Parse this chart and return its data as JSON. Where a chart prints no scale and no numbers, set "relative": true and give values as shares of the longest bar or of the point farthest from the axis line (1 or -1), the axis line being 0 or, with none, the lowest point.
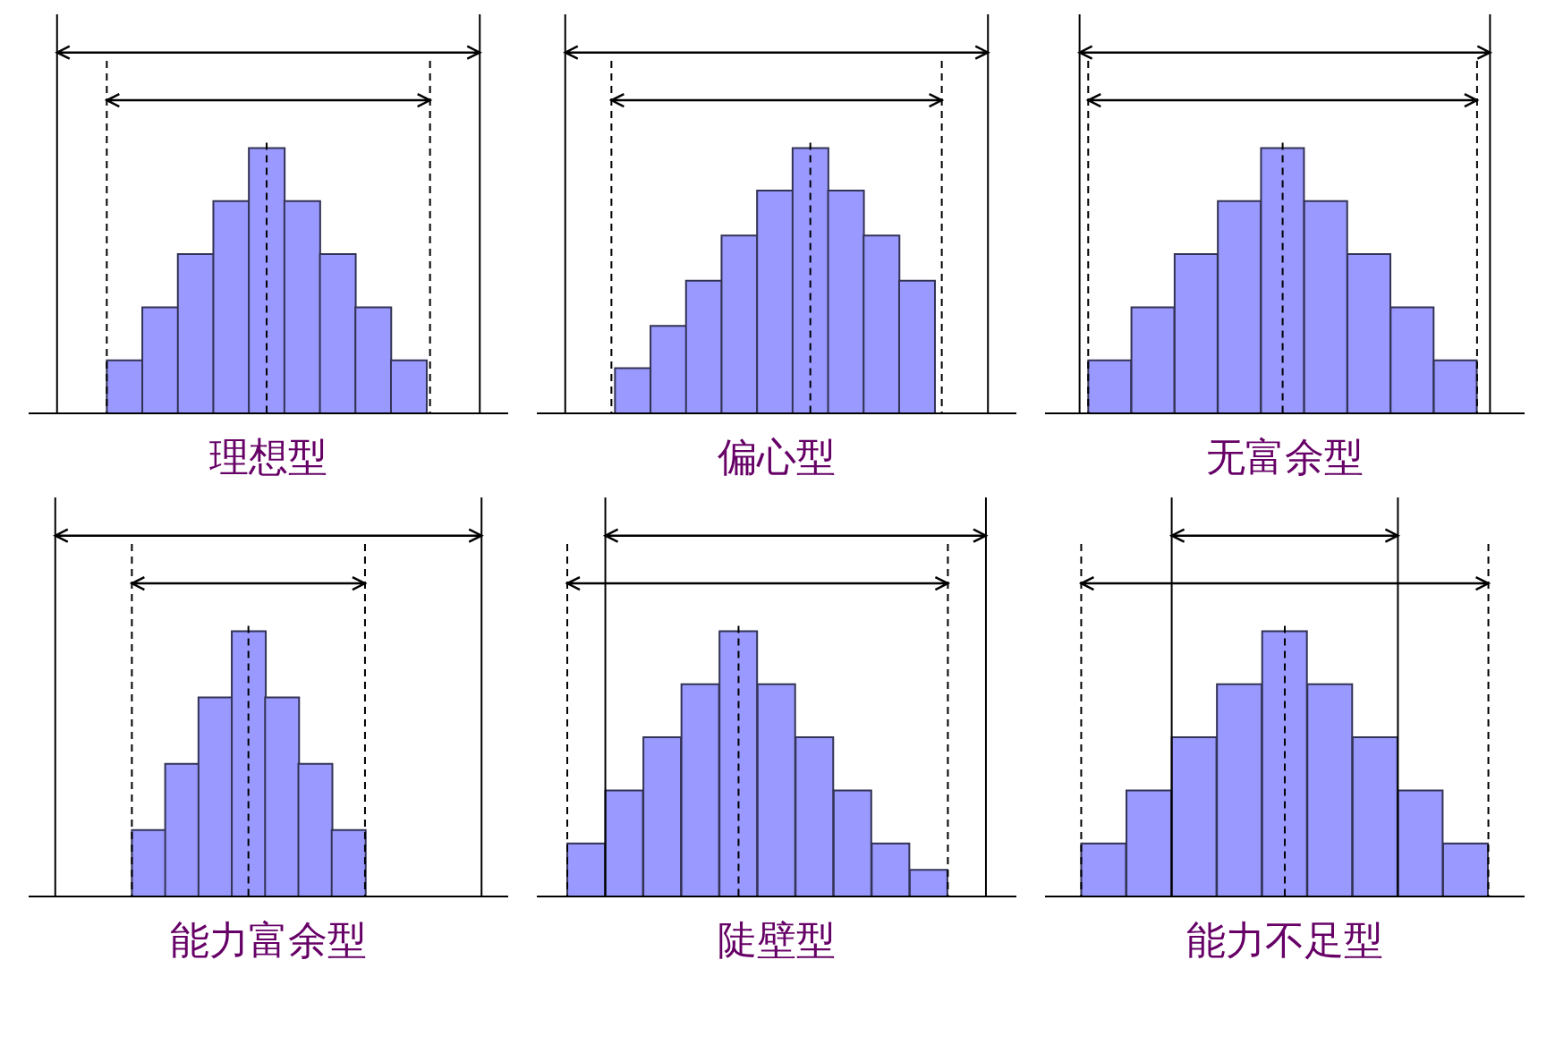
{
  "chart_data": [
    {
      "type": "bar",
      "title": "理想型",
      "relative": true,
      "color": "#9999ff",
      "categories": [
        null,
        null,
        null,
        null,
        null,
        null,
        null,
        null,
        null
      ],
      "values": [
        0.2,
        0.4,
        0.6,
        0.8,
        1,
        0.8,
        0.6,
        0.4,
        0.2
      ]
    },
    {
      "type": "bar",
      "title": "偏心型",
      "relative": true,
      "color": "#9999ff",
      "categories": [
        null,
        null,
        null,
        null,
        null,
        null,
        null,
        null,
        null
      ],
      "values": [
        0.17,
        0.33,
        0.5,
        0.67,
        0.84,
        1,
        0.84,
        0.67,
        0.5
      ]
    },
    {
      "type": "bar",
      "title": "无富余型",
      "relative": true,
      "color": "#9999ff",
      "categories": [
        null,
        null,
        null,
        null,
        null,
        null,
        null,
        null,
        null
      ],
      "values": [
        0.2,
        0.4,
        0.6,
        0.8,
        1,
        0.8,
        0.6,
        0.4,
        0.2
      ]
    },
    {
      "type": "bar",
      "title": "能力富余型",
      "relative": true,
      "color": "#9999ff",
      "categories": [
        null,
        null,
        null,
        null,
        null,
        null,
        null
      ],
      "values": [
        0.25,
        0.5,
        0.75,
        1,
        0.75,
        0.5,
        0.25
      ]
    },
    {
      "type": "bar",
      "title": "陡壁型",
      "relative": true,
      "color": "#9999ff",
      "categories": [
        null,
        null,
        null,
        null,
        null,
        null,
        null,
        null,
        null,
        null
      ],
      "values": [
        0.2,
        0.4,
        0.6,
        0.8,
        1,
        0.8,
        0.6,
        0.4,
        0.2,
        0.1
      ]
    },
    {
      "type": "bar",
      "title": "能力不足型",
      "relative": true,
      "color": "#9999ff",
      "categories": [
        null,
        null,
        null,
        null,
        null,
        null,
        null,
        null,
        null
      ],
      "values": [
        0.2,
        0.4,
        0.6,
        0.8,
        1,
        0.8,
        0.6,
        0.4,
        0.2
      ]
    }
  ]
}
